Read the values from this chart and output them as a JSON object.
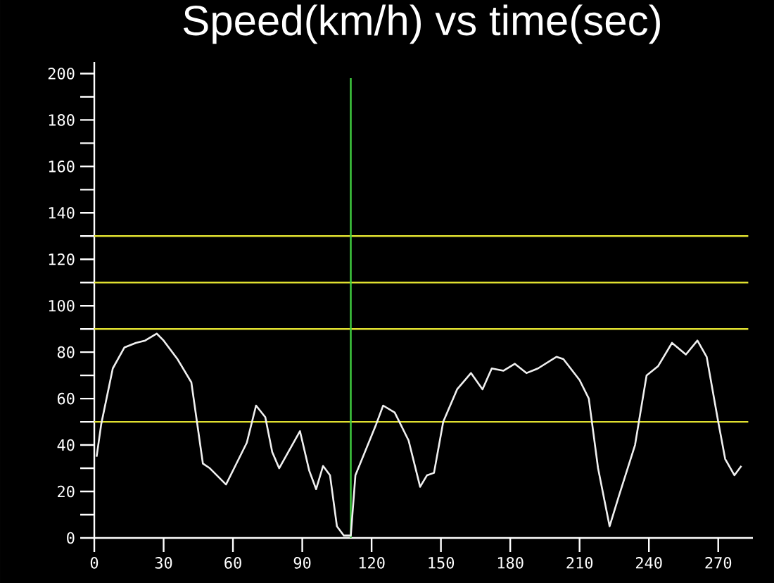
{
  "chart_data": {
    "type": "line",
    "title": "Speed(km/h) vs time(sec)",
    "series": [
      {
        "color": "#f0f0f0",
        "x": [
          1,
          3,
          8,
          13,
          18,
          22,
          27,
          30,
          36,
          42,
          44,
          47,
          50,
          57,
          61,
          66,
          70,
          74,
          77,
          80,
          89,
          93,
          96,
          99,
          102,
          105,
          108,
          111,
          113,
          122,
          125,
          130,
          136,
          141,
          144,
          147,
          151,
          157,
          163,
          168,
          172,
          177,
          182,
          187,
          192,
          200,
          203,
          210,
          214,
          218,
          223,
          227,
          234,
          239,
          244,
          250,
          256,
          261,
          265,
          270,
          273,
          277,
          280
        ],
        "values": [
          35,
          49,
          73,
          82,
          84,
          85,
          88,
          85,
          77,
          67,
          53,
          32,
          30,
          23,
          31,
          41,
          57,
          52,
          37,
          30,
          46,
          29,
          21,
          31,
          27,
          5,
          1,
          1,
          27,
          49,
          57,
          54,
          42,
          22,
          27,
          28,
          50,
          64,
          71,
          64,
          73,
          72,
          75,
          71,
          73,
          78,
          77,
          68,
          60,
          30,
          5,
          18,
          40,
          70,
          74,
          84,
          79,
          85,
          78,
          50,
          34,
          27,
          31
        ]
      }
    ],
    "xlim": [
      0,
      285
    ],
    "ylim": [
      0,
      205
    ],
    "xticks": [
      0,
      30,
      60,
      90,
      120,
      150,
      180,
      210,
      240,
      270
    ],
    "yticks": [
      0,
      {
        "value": 10,
        "label": null
      },
      20,
      {
        "value": 30,
        "label": null
      },
      40,
      {
        "value": 50,
        "label": null
      },
      60,
      {
        "value": 70,
        "label": null
      },
      80,
      {
        "value": 90,
        "label": null
      },
      100,
      {
        "value": 110,
        "label": null
      },
      120,
      {
        "value": 130,
        "label": null
      },
      140,
      {
        "value": 150,
        "label": null
      },
      160,
      {
        "value": 170,
        "label": null
      },
      180,
      {
        "value": 190,
        "label": null
      },
      200
    ],
    "ref_lines": [
      {
        "axis": "y",
        "value": 130,
        "color": "#e0e030"
      },
      {
        "axis": "y",
        "value": 110,
        "color": "#e0e030"
      },
      {
        "axis": "y",
        "value": 90,
        "color": "#e0e030"
      },
      {
        "axis": "y",
        "value": 50,
        "color": "#e0e030"
      },
      {
        "axis": "x",
        "value": 111,
        "color": "#40d040"
      }
    ],
    "grid": false,
    "marker": "none",
    "line_style": "solid"
  }
}
